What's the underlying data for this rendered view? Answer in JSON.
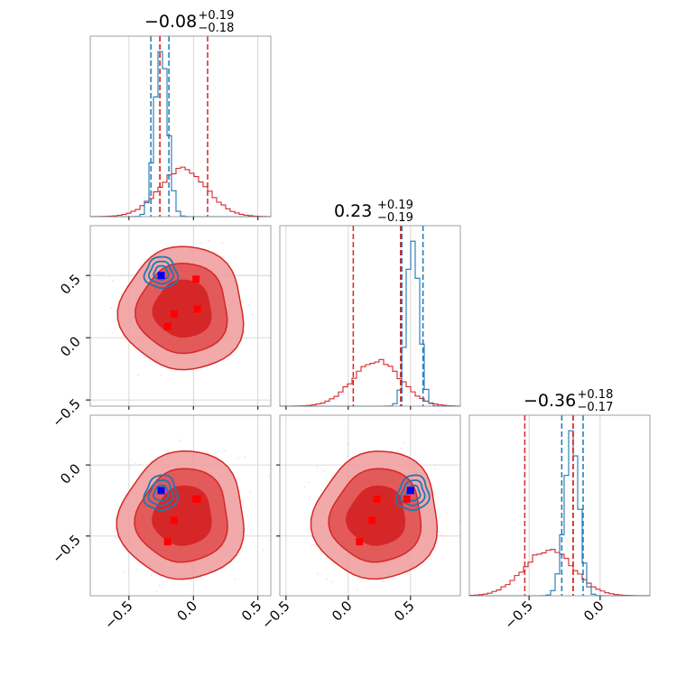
{
  "chart_data": {
    "type": "corner",
    "params": 3,
    "colors": {
      "red": "#d62728",
      "red_light": "#ee9a9a",
      "red_mid": "#e35a5a",
      "blue": "#1f77b4",
      "marker_red": "#ff0000",
      "marker_blue": "#0000ff",
      "grid": "#cccccc"
    },
    "ranges": [
      [
        -0.8,
        0.6
      ],
      [
        -0.55,
        0.9
      ],
      [
        -0.92,
        0.35
      ]
    ],
    "ticks": [
      {
        "values": [
          -0.5,
          0.0,
          0.5
        ],
        "labels": [
          "−0.5",
          "0.0",
          "0.5"
        ]
      },
      {
        "values": [
          -0.5,
          0.0,
          0.5
        ],
        "labels": [
          "−0.5",
          "0.0",
          "0.5"
        ]
      },
      {
        "values": [
          -0.5,
          0.0
        ],
        "labels": [
          "−0.5",
          "0.0"
        ]
      }
    ],
    "titles": [
      {
        "main": "−0.08",
        "plus": "+0.19",
        "minus": "−0.18"
      },
      {
        "main": "0.23",
        "plus": "+0.19",
        "minus": "−0.19"
      },
      {
        "main": "−0.36",
        "plus": "+0.18",
        "minus": "−0.17"
      }
    ],
    "series": [
      {
        "color": "red",
        "mean": [
          -0.08,
          0.23,
          -0.36
        ],
        "sd": [
          0.185,
          0.19,
          0.175
        ],
        "corr": [
          [
            1,
            0.0,
            0.0
          ],
          [
            0.0,
            1,
            0.05
          ],
          [
            0.0,
            0.05,
            1
          ]
        ],
        "quantiles": [
          [
            -0.26,
            0.11
          ],
          [
            0.04,
            0.42
          ],
          [
            -0.53,
            -0.19
          ]
        ]
      },
      {
        "color": "blue",
        "mean": [
          -0.25,
          0.52,
          -0.2
        ],
        "sd": [
          0.05,
          0.05,
          0.05
        ],
        "corr": [
          [
            1,
            0.1,
            0.1
          ],
          [
            0.1,
            1,
            0.1
          ],
          [
            0.1,
            0.1,
            1
          ]
        ],
        "quantiles": [
          [
            -0.33,
            -0.19
          ],
          [
            0.43,
            0.6
          ],
          [
            -0.27,
            -0.12
          ]
        ]
      }
    ],
    "markers_red": [
      [
        0.02,
        0.47,
        -0.24
      ],
      [
        0.03,
        0.23,
        -0.24
      ],
      [
        -0.15,
        0.19,
        -0.39
      ],
      [
        -0.2,
        0.09,
        -0.54
      ]
    ],
    "markers_blue": [
      [
        -0.25,
        0.5,
        -0.18
      ]
    ]
  }
}
